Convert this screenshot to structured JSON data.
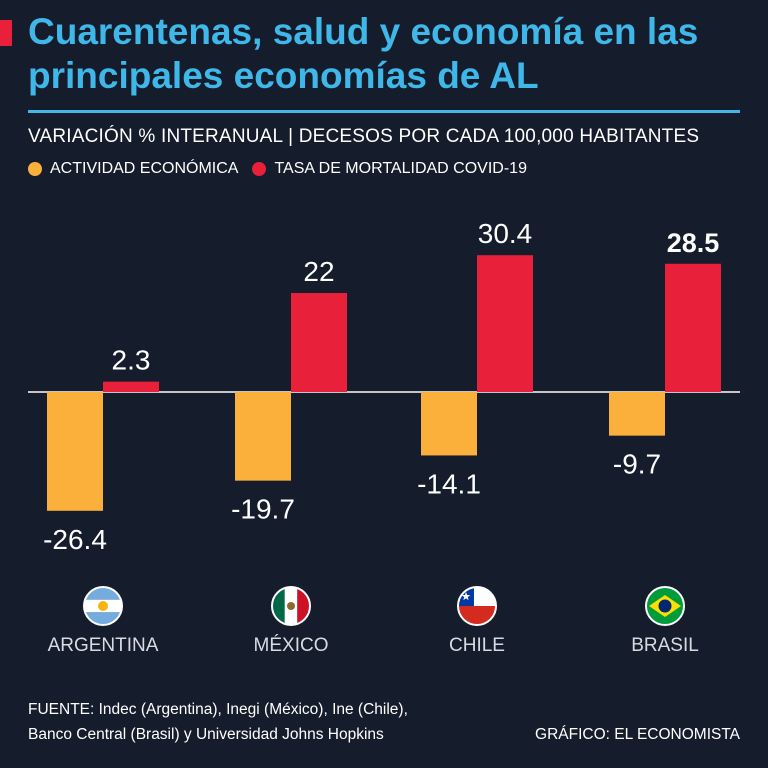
{
  "header": {
    "title": "Cuarentenas, salud y economía en las principales economías de AL",
    "subtitle": "VARIACIÓN % INTERANUAL | DECESOS POR CADA 100,000 HABITANTES"
  },
  "legend": {
    "items": [
      {
        "label": "ACTIVIDAD ECONÓMICA",
        "color": "#fbb03b"
      },
      {
        "label": "TASA DE MORTALIDAD COVID-19",
        "color": "#e8203a"
      }
    ]
  },
  "chart_data": {
    "type": "bar",
    "categories": [
      "ARGENTINA",
      "MÉXICO",
      "CHILE",
      "BRASIL"
    ],
    "series": [
      {
        "name": "ACTIVIDAD ECONÓMICA",
        "color": "#fbb03b",
        "values": [
          -26.4,
          -19.7,
          -14.1,
          -9.7
        ],
        "labels": [
          "-26.4",
          "-19.7",
          "-14.1",
          "-9.7"
        ]
      },
      {
        "name": "TASA DE MORTALIDAD COVID-19",
        "color": "#e8203a",
        "values": [
          2.3,
          22,
          30.4,
          28.5
        ],
        "labels": [
          "2.3",
          "22",
          "30.4",
          "28.5"
        ]
      }
    ],
    "highlighted": {
      "series": 1,
      "index": 3
    },
    "flags": [
      "argentina-flag-icon",
      "mexico-flag-icon",
      "chile-flag-icon",
      "brazil-flag-icon"
    ],
    "title": "Cuarentenas, salud y economía en las principales economías de AL",
    "xlabel": "",
    "ylabel": "",
    "ylim": [
      -30,
      35
    ]
  },
  "footer": {
    "source_line1": "FUENTE: Indec (Argentina), Inegi (México), Ine (Chile),",
    "source_line2": "Banco Central (Brasil) y Universidad Johns Hopkins",
    "credit": "GRÁFICO: EL ECONOMISTA"
  }
}
